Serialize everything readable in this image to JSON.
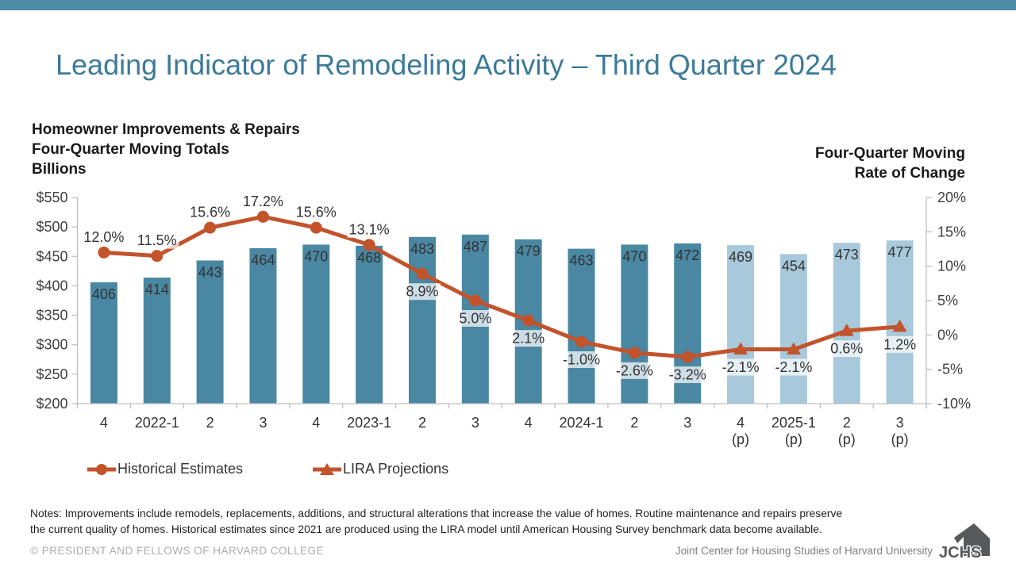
{
  "title": "Leading Indicator of Remodeling Activity – Third Quarter 2024",
  "chart": {
    "left_axis_title": [
      "Homeowner Improvements & Repairs",
      "Four-Quarter Moving Totals",
      "Billions"
    ],
    "right_axis_title": [
      "Four-Quarter Moving",
      "Rate of Change"
    ]
  },
  "chart_data": {
    "type": "bar",
    "title": "Leading Indicator of Remodeling Activity – Third Quarter 2024",
    "categories": [
      "4",
      "2022-1",
      "2",
      "3",
      "4",
      "2023-1",
      "2",
      "3",
      "4",
      "2024-1",
      "2",
      "3",
      "4 (p)",
      "2025-1 (p)",
      "2 (p)",
      "3 (p)"
    ],
    "projection": [
      false,
      false,
      false,
      false,
      false,
      false,
      false,
      false,
      false,
      false,
      false,
      false,
      true,
      true,
      true,
      true
    ],
    "series": [
      {
        "name": "Homeowner Improvements & Repairs, Four-Quarter Moving Totals (Billions $)",
        "type": "bar",
        "axis": "left",
        "values": [
          406,
          414,
          443,
          464,
          470,
          468,
          483,
          487,
          479,
          463,
          470,
          472,
          469,
          454,
          473,
          477
        ]
      },
      {
        "name": "Four-Quarter Moving Rate of Change (%)",
        "type": "line",
        "axis": "right",
        "values": [
          12.0,
          11.5,
          15.6,
          17.2,
          15.6,
          13.1,
          8.9,
          5.0,
          2.1,
          -1.0,
          -2.6,
          -3.2,
          -2.1,
          -2.1,
          0.6,
          1.2
        ]
      }
    ],
    "left_axis": {
      "min": 200,
      "max": 550,
      "step": 50,
      "prefix": "$"
    },
    "right_axis": {
      "min": -10,
      "max": 20,
      "step": 5,
      "suffix": "%"
    },
    "grid": false,
    "legend_position": "bottom"
  },
  "legend": {
    "items": [
      {
        "label": "Historical Estimates",
        "marker": "circle"
      },
      {
        "label": "LIRA Projections",
        "marker": "triangle"
      }
    ]
  },
  "notes_lines": [
    "Notes: Improvements include remodels, replacements, additions, and structural alterations that increase the value of homes. Routine maintenance and repairs preserve",
    "the current quality of homes. Historical estimates since 2021 are produced using the LIRA model until American Housing Survey benchmark data become available."
  ],
  "footer": {
    "left": "© PRESIDENT AND FELLOWS OF HARVARD COLLEGE",
    "right": "Joint Center for Housing Studies of Harvard University",
    "logo_text": "JCHS"
  },
  "colors": {
    "topbar": "#4E8CA4",
    "title": "#3C7A99",
    "bar_historical": "#4A87A2",
    "bar_projection": "#A8C9DB",
    "line": "#C2532B",
    "axis": "#BFBFBF",
    "tick_text": "#404040",
    "label_text": "#333333",
    "label_bg": "rgba(255,255,255,0.72)",
    "logo": "#58595B"
  }
}
